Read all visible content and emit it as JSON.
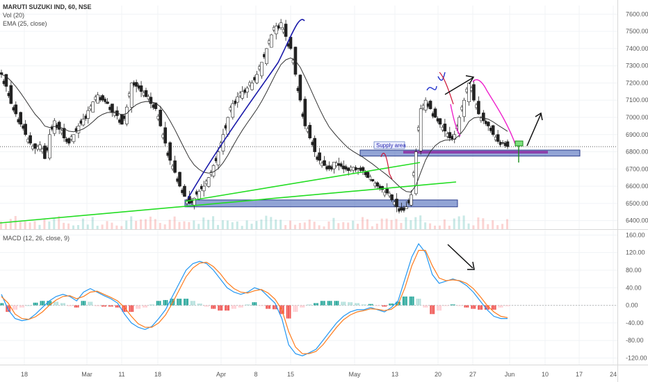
{
  "header": {
    "symbol_line": "MARUTI SUZUKI IND, 60, NSE",
    "vol_label": "Vol (20)",
    "ema_label": "EMA (25, close)",
    "macd_label": "MACD (12, 26, close, 9)"
  },
  "annotation_text": "Supply area",
  "colors": {
    "up": "#26a69a",
    "down": "#ef5350",
    "zone": "#3b5bb5",
    "trend_green": "#22dd22",
    "trend_blue": "#1a1aaa",
    "pink": "#ee22cc",
    "macd_line": "#2196f3",
    "signal_line": "#ff7a1a",
    "price_line": "#333333"
  },
  "chart_data": [
    {
      "type": "candlestick",
      "title": "MARUTI SUZUKI IND, 60, NSE",
      "ylim": [
        6350,
        7650
      ],
      "yticks": [
        6400,
        6500,
        6600,
        6700,
        6800,
        6900,
        7000,
        7100,
        7200,
        7300,
        7400,
        7500,
        7600
      ],
      "ytick_labels": [
        "6400.00",
        "6500.00",
        "6600.00",
        "6700.00",
        "6800.00",
        "6900.00",
        "7000.00",
        "7100.00",
        "7200.00",
        "7300.00",
        "7400.00",
        "7500.00",
        "7600.00"
      ],
      "xtick_labels": [
        "18",
        "Mar",
        "11",
        "18",
        "Apr",
        "8",
        "15",
        "May",
        "13",
        "20",
        "27",
        "Jun",
        "10",
        "17",
        "24"
      ],
      "series": [
        {
          "name": "EMA (25, close)",
          "values": []
        }
      ],
      "approx_closes": [
        7250,
        7180,
        7080,
        7020,
        6960,
        6900,
        6850,
        6820,
        6840,
        6760,
        6900,
        6980,
        6930,
        6880,
        6850,
        6900,
        6950,
        6990,
        7040,
        7090,
        7130,
        7100,
        7080,
        7030,
        7010,
        6960,
        7060,
        7200,
        7180,
        7150,
        7120,
        7080,
        7050,
        6950,
        6850,
        6750,
        6680,
        6600,
        6540,
        6500,
        6530,
        6570,
        6600,
        6650,
        6720,
        6800,
        6900,
        7000,
        7080,
        7120,
        7150,
        7170,
        7200,
        7250,
        7320,
        7400,
        7480,
        7530,
        7550,
        7470,
        7400,
        7250,
        7100,
        6950,
        6880,
        6800,
        6750,
        6720,
        6700,
        6740,
        6720,
        6700,
        6690,
        6710,
        6700,
        6690,
        6650,
        6630,
        6600,
        6580,
        6560,
        6520,
        6480,
        6460,
        6480,
        6550,
        6800,
        7050,
        7100,
        7050,
        7000,
        6960,
        6920,
        6880,
        6900,
        7000,
        7100,
        7200,
        7100,
        7020,
        6980,
        6950,
        6900,
        6860,
        6850,
        6830
      ]
    },
    {
      "type": "line",
      "title": "MACD (12, 26, close, 9)",
      "ylim": [
        -135,
        170
      ],
      "yticks": [
        -120,
        -80,
        -40,
        0,
        40,
        80,
        120,
        160
      ],
      "ytick_labels": [
        "-120.00",
        "-80.00",
        "-40.00",
        "0.00",
        "40.00",
        "80.00",
        "120.00",
        "160.00"
      ],
      "series": [
        {
          "name": "MACD",
          "values": [
            25,
            -10,
            -30,
            -35,
            -32,
            -20,
            -5,
            10,
            20,
            25,
            20,
            10,
            30,
            38,
            30,
            22,
            15,
            5,
            -20,
            -40,
            -50,
            -55,
            -48,
            -30,
            -10,
            20,
            50,
            80,
            95,
            100,
            95,
            80,
            60,
            40,
            30,
            25,
            30,
            40,
            35,
            20,
            5,
            -30,
            -90,
            -110,
            -115,
            -108,
            -100,
            -80,
            -60,
            -40,
            -25,
            -15,
            -10,
            -10,
            -5,
            -10,
            -15,
            -5,
            10,
            60,
            110,
            140,
            120,
            70,
            50,
            55,
            60,
            55,
            45,
            30,
            10,
            -10,
            -25,
            -30,
            -30
          ]
        },
        {
          "name": "Signal",
          "values": [
            20,
            5,
            -20,
            -30,
            -32,
            -26,
            -15,
            0,
            12,
            20,
            22,
            15,
            20,
            30,
            32,
            25,
            18,
            10,
            -5,
            -25,
            -42,
            -50,
            -50,
            -40,
            -22,
            5,
            35,
            65,
            85,
            96,
            98,
            88,
            72,
            52,
            38,
            30,
            28,
            33,
            36,
            28,
            14,
            -10,
            -60,
            -95,
            -110,
            -110,
            -105,
            -90,
            -70,
            -50,
            -33,
            -22,
            -15,
            -12,
            -8,
            -9,
            -12,
            -9,
            2,
            40,
            90,
            125,
            125,
            90,
            62,
            56,
            58,
            56,
            50,
            38,
            20,
            0,
            -15,
            -25,
            -28
          ]
        }
      ]
    }
  ]
}
